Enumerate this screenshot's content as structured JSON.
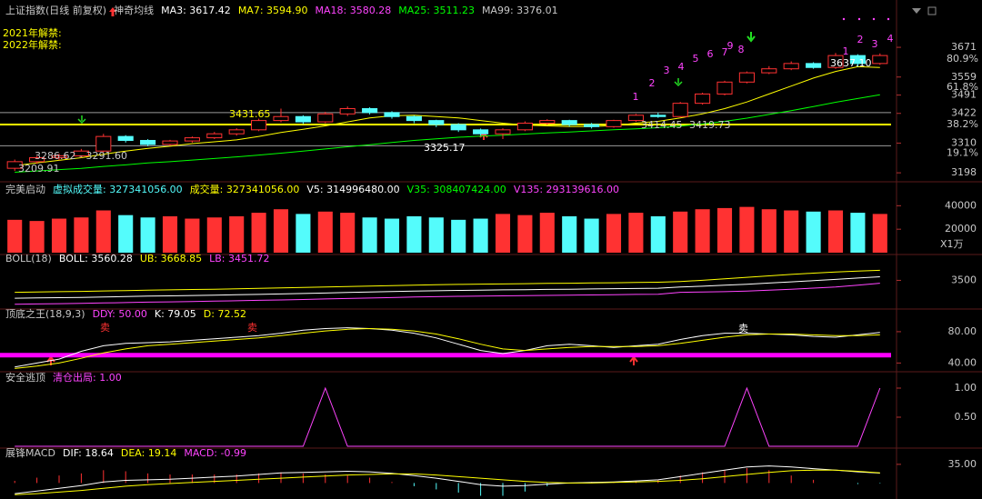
{
  "chart_data": [
    {
      "type": "candlestick",
      "header": [
        {
          "label": "上证指数(日线 前复权)",
          "color": "#c8c8c8"
        },
        {
          "label": "神奇均线",
          "color": "#c8c8c8"
        },
        {
          "label": "MA3: 3617.42",
          "color": "#ffffff"
        },
        {
          "label": "MA7: 3594.90",
          "color": "#ffff00"
        },
        {
          "label": "MA18: 3580.28",
          "color": "#ff44ff"
        },
        {
          "label": "MA25: 3511.23",
          "color": "#00ff00"
        },
        {
          "label": "MA99: 3376.01",
          "color": "#c8c8c8"
        }
      ],
      "up_color": "#ff3232",
      "down_color": "#54fcfc",
      "open": [
        3215,
        3240,
        3255,
        3262,
        3280,
        3335,
        3320,
        3305,
        3318,
        3330,
        3345,
        3360,
        3395,
        3410,
        3390,
        3420,
        3440,
        3425,
        3410,
        3395,
        3380,
        3360,
        3345,
        3360,
        3385,
        3395,
        3380,
        3372,
        3395,
        3415,
        3410,
        3460,
        3495,
        3540,
        3575,
        3590,
        3610,
        3595,
        3640,
        3610
      ],
      "high": [
        3248,
        3262,
        3270,
        3288,
        3345,
        3340,
        3325,
        3322,
        3335,
        3352,
        3366,
        3402,
        3440,
        3415,
        3428,
        3448,
        3445,
        3430,
        3414,
        3398,
        3385,
        3365,
        3366,
        3392,
        3400,
        3398,
        3386,
        3398,
        3420,
        3425,
        3465,
        3500,
        3545,
        3580,
        3600,
        3618,
        3615,
        3650,
        3645,
        3648
      ],
      "low": [
        3205,
        3232,
        3245,
        3255,
        3275,
        3312,
        3298,
        3300,
        3312,
        3325,
        3338,
        3355,
        3388,
        3382,
        3385,
        3412,
        3418,
        3402,
        3385,
        3370,
        3352,
        3338,
        3325,
        3355,
        3378,
        3372,
        3365,
        3368,
        3390,
        3405,
        3408,
        3455,
        3490,
        3535,
        3570,
        3585,
        3590,
        3590,
        3598,
        3605
      ],
      "close": [
        3240,
        3255,
        3262,
        3280,
        3335,
        3320,
        3305,
        3318,
        3330,
        3345,
        3360,
        3395,
        3410,
        3390,
        3420,
        3440,
        3425,
        3410,
        3395,
        3380,
        3360,
        3345,
        3360,
        3385,
        3395,
        3380,
        3372,
        3395,
        3415,
        3410,
        3460,
        3495,
        3540,
        3575,
        3590,
        3610,
        3595,
        3640,
        3610,
        3640
      ],
      "series": [
        {
          "color": "#ffff00",
          "values": [
            3225,
            3235,
            3245,
            3255,
            3268,
            3280,
            3290,
            3298,
            3308,
            3315,
            3322,
            3335,
            3350,
            3362,
            3375,
            3390,
            3405,
            3413,
            3415,
            3410,
            3405,
            3395,
            3385,
            3378,
            3375,
            3372,
            3372,
            3376,
            3385,
            3392,
            3405,
            3420,
            3440,
            3465,
            3495,
            3525,
            3555,
            3580,
            3598,
            3595
          ]
        },
        {
          "color": "#00ff00",
          "values": [
            3200,
            3205,
            3210,
            3215,
            3222,
            3228,
            3235,
            3240,
            3246,
            3252,
            3258,
            3265,
            3272,
            3280,
            3288,
            3296,
            3304,
            3312,
            3320,
            3326,
            3332,
            3336,
            3340,
            3344,
            3348,
            3352,
            3356,
            3360,
            3364,
            3368,
            3374,
            3382,
            3392,
            3404,
            3418,
            3432,
            3448,
            3464,
            3478,
            3492
          ]
        }
      ],
      "hlines": [
        {
          "value": 3380,
          "color": "#ffff00"
        },
        {
          "value": 3425,
          "color": "#9a9a9a"
        },
        {
          "value": 3300,
          "color": "#9a9a9a"
        }
      ],
      "ylim": [
        3171,
        3774
      ],
      "yticks": [
        3198,
        3310,
        3422,
        3491,
        3559,
        3671
      ],
      "fib_labels": [
        {
          "value": 3626,
          "label": "80.9%"
        },
        {
          "value": 3520,
          "label": "61.8%"
        },
        {
          "value": 3380,
          "label": "38.2%"
        },
        {
          "value": 3272,
          "label": "19.1%"
        }
      ],
      "annotations": [
        {
          "label": "3431.65",
          "color": "#ffff00"
        },
        {
          "label": "3325.17",
          "color": "#ffffff"
        },
        {
          "label": "3286.62 - 3291.60",
          "color": "#c8c8c8"
        },
        {
          "label": "3209.91",
          "color": "#c8c8c8"
        },
        {
          "label": "3414.45",
          "color": "#c8c8c8"
        },
        {
          "label": "3419.73",
          "color": "#c8c8c8"
        },
        {
          "label": "3637.10",
          "color": "#ffffff"
        },
        {
          "label": "2021年解禁:",
          "color": "#ffff00"
        },
        {
          "label": "2022年解禁:",
          "color": "#ffff00"
        }
      ],
      "sequence": [
        "1",
        "2",
        "3",
        "4",
        "5",
        "6",
        "7",
        "8",
        "9",
        "1",
        "2",
        "3",
        "4"
      ],
      "sequence_color": "#ff44ff"
    },
    {
      "type": "bar",
      "header": [
        {
          "label": "完美启动",
          "color": "#c8c8c8"
        },
        {
          "label": "虚拟成交量: 327341056.00",
          "color": "#54fcfc"
        },
        {
          "label": "成交量: 327341056.00",
          "color": "#ffff00"
        },
        {
          "label": "V5: 314996480.00",
          "color": "#ffffff"
        },
        {
          "label": "V35: 308407424.00",
          "color": "#00ff00"
        },
        {
          "label": "V135: 293139616.00",
          "color": "#ff44ff"
        }
      ],
      "values": [
        28000,
        27000,
        29000,
        30000,
        36000,
        32000,
        30000,
        31000,
        29000,
        30000,
        31000,
        34000,
        37000,
        33000,
        35000,
        34000,
        30000,
        29000,
        31000,
        30000,
        28000,
        29000,
        33000,
        32000,
        34000,
        31000,
        29000,
        33000,
        34000,
        31000,
        35000,
        37000,
        38000,
        39000,
        37000,
        36000,
        35000,
        36000,
        34000,
        33000
      ],
      "ylim": [
        0,
        48000
      ],
      "yticks": [
        20000,
        40000
      ],
      "unit_label": "X1万"
    },
    {
      "type": "line",
      "header": [
        {
          "label": "BOLL(18)",
          "color": "#c8c8c8"
        },
        {
          "label": "BOLL: 3560.28",
          "color": "#ffffff"
        },
        {
          "label": "UB: 3668.85",
          "color": "#ffff00"
        },
        {
          "label": "LB: 3451.72",
          "color": "#ff44ff"
        }
      ],
      "series": [
        {
          "color": "#ffffff",
          "values": [
            3200,
            3205,
            3210,
            3215,
            3222,
            3228,
            3235,
            3240,
            3246,
            3252,
            3258,
            3265,
            3272,
            3280,
            3288,
            3296,
            3304,
            3312,
            3320,
            3326,
            3332,
            3336,
            3340,
            3344,
            3348,
            3352,
            3356,
            3360,
            3364,
            3368,
            3390,
            3402,
            3418,
            3435,
            3455,
            3475,
            3495,
            3515,
            3538,
            3560
          ]
        },
        {
          "color": "#ffff00",
          "values": [
            3300,
            3305,
            3310,
            3315,
            3322,
            3328,
            3335,
            3340,
            3346,
            3352,
            3358,
            3365,
            3372,
            3380,
            3388,
            3396,
            3404,
            3412,
            3420,
            3426,
            3432,
            3436,
            3440,
            3444,
            3448,
            3452,
            3456,
            3460,
            3464,
            3468,
            3480,
            3500,
            3525,
            3550,
            3575,
            3600,
            3620,
            3640,
            3655,
            3668
          ]
        },
        {
          "color": "#ff44ff",
          "values": [
            3100,
            3105,
            3110,
            3115,
            3122,
            3128,
            3135,
            3140,
            3146,
            3152,
            3158,
            3165,
            3172,
            3180,
            3188,
            3196,
            3204,
            3212,
            3220,
            3226,
            3232,
            3236,
            3240,
            3244,
            3248,
            3252,
            3256,
            3260,
            3264,
            3268,
            3300,
            3305,
            3310,
            3320,
            3335,
            3350,
            3370,
            3390,
            3420,
            3452
          ]
        }
      ],
      "ylim": [
        3050,
        3750
      ],
      "yticks": [
        3500
      ]
    },
    {
      "type": "line",
      "header": [
        {
          "label": "顶底之王(18,9,3)",
          "color": "#c8c8c8"
        },
        {
          "label": "DDY: 50.00",
          "color": "#ff44ff"
        },
        {
          "label": "K: 79.05",
          "color": "#ffffff"
        },
        {
          "label": "D: 72.52",
          "color": "#ffff00"
        }
      ],
      "series": [
        {
          "color": "#ffffff",
          "values": [
            35,
            40,
            45,
            55,
            62,
            65,
            66,
            67,
            69,
            71,
            73,
            75,
            78,
            82,
            84,
            85,
            84,
            82,
            78,
            72,
            64,
            56,
            52,
            56,
            62,
            64,
            62,
            60,
            62,
            64,
            70,
            75,
            78,
            78,
            77,
            76,
            74,
            73,
            76,
            79
          ]
        },
        {
          "color": "#ffff00",
          "values": [
            33,
            36,
            40,
            46,
            53,
            58,
            62,
            64,
            66,
            68,
            70,
            72,
            75,
            78,
            81,
            83,
            84,
            83,
            81,
            77,
            71,
            64,
            58,
            56,
            58,
            60,
            61,
            61,
            61,
            62,
            65,
            69,
            73,
            76,
            77,
            77,
            76,
            75,
            75,
            76
          ]
        }
      ],
      "hlines": [
        {
          "value": 50,
          "color": "#ff00ff"
        }
      ],
      "annotations": [
        {
          "label": "卖",
          "color": "#ff3232"
        },
        {
          "label": "卖",
          "color": "#ff3232"
        },
        {
          "label": "卖",
          "color": "#ffffff"
        }
      ],
      "ylim": [
        30,
        95
      ],
      "yticks": [
        {
          "value": 40,
          "label": "40.00"
        },
        {
          "value": 80,
          "label": "80.00"
        }
      ]
    },
    {
      "type": "line",
      "header": [
        {
          "label": "安全逃顶",
          "color": "#c8c8c8"
        },
        {
          "label": "清仓出局: 1.00",
          "color": "#ff44ff"
        }
      ],
      "series": [
        {
          "color": "#ff44ff",
          "values": [
            0,
            0,
            0,
            0,
            0,
            0,
            0,
            0,
            0,
            0,
            0,
            0,
            0,
            0,
            1,
            0,
            0,
            0,
            0,
            0,
            0,
            0,
            0,
            0,
            0,
            0,
            0,
            0,
            0,
            0,
            0,
            0,
            0,
            1,
            0,
            0,
            0,
            0,
            0,
            1
          ]
        }
      ],
      "ylim": [
        0,
        1
      ],
      "yticks": [
        {
          "value": 0.5,
          "label": "0.50"
        },
        {
          "value": 1,
          "label": "1.00"
        }
      ]
    },
    {
      "type": "macd",
      "header": [
        {
          "label": "展锋MACD",
          "color": "#c8c8c8"
        },
        {
          "label": "DIF: 18.64",
          "color": "#ffffff"
        },
        {
          "label": "DEA: 19.14",
          "color": "#ffff00"
        },
        {
          "label": "MACD: -0.99",
          "color": "#ff44ff"
        }
      ],
      "values": [
        4,
        10,
        14,
        18,
        24,
        22,
        18,
        16,
        16,
        16,
        16,
        18,
        20,
        18,
        16,
        14,
        10,
        2,
        -6,
        -12,
        -18,
        -24,
        -24,
        -16,
        -6,
        0,
        2,
        2,
        4,
        6,
        14,
        20,
        24,
        28,
        24,
        14,
        6,
        0,
        -2,
        -0.99
      ],
      "series": [
        {
          "color": "#ffffff",
          "values": [
            -20,
            -15,
            -10,
            -5,
            2,
            5,
            6,
            7,
            9,
            11,
            13,
            16,
            19,
            20,
            21,
            22,
            21,
            18,
            14,
            9,
            3,
            -3,
            -6,
            -5,
            -2,
            0,
            1,
            2,
            4,
            6,
            12,
            18,
            24,
            30,
            32,
            30,
            27,
            24,
            21,
            18.64
          ]
        },
        {
          "color": "#ffff00",
          "values": [
            -22,
            -20,
            -17,
            -14,
            -10,
            -6,
            -3,
            -1,
            1,
            3,
            5,
            7,
            9,
            11,
            13,
            15,
            16,
            17,
            17,
            15,
            12,
            9,
            6,
            3,
            1,
            0,
            0,
            1,
            2,
            3,
            5,
            8,
            12,
            16,
            20,
            23,
            24,
            24,
            22,
            19.14
          ]
        }
      ],
      "ylim": [
        -30,
        45
      ],
      "yticks": [
        {
          "value": 35,
          "label": "35.00"
        }
      ]
    }
  ]
}
